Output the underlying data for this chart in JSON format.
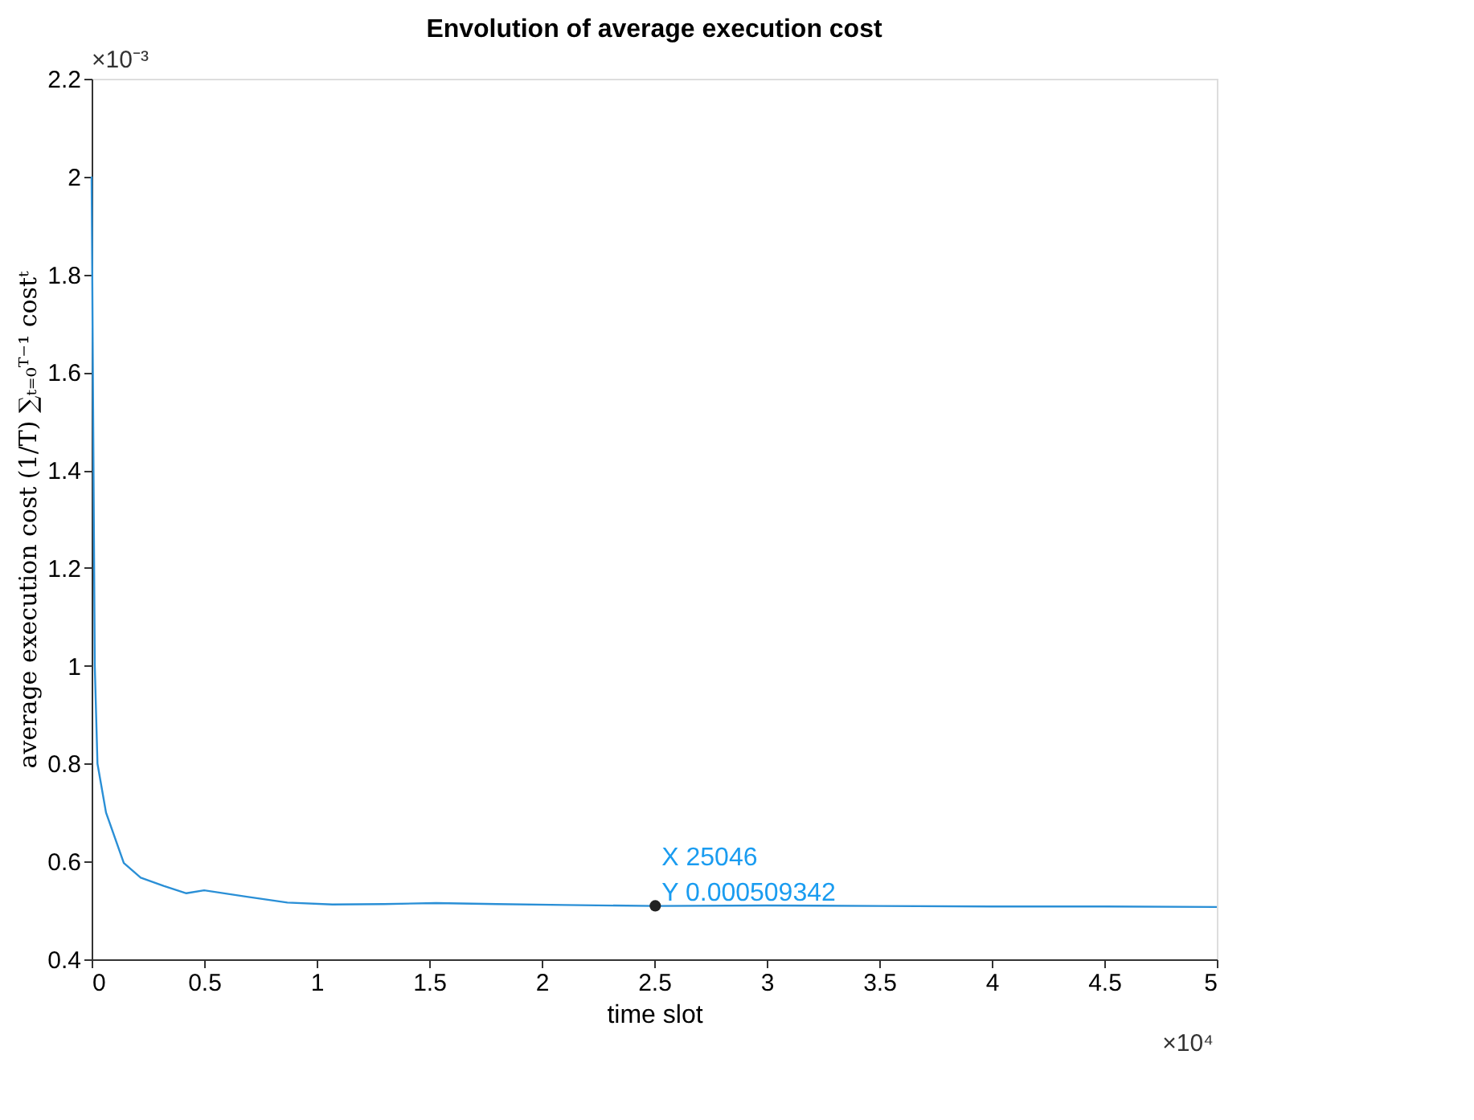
{
  "chart_data": {
    "type": "line",
    "title": "Envolution of average execution cost",
    "xlabel": "time slot",
    "ylabel": "average execution cost (1/T) ∑ₜ₌₀ᵀ⁻¹ costᵗ",
    "x": [
      0,
      0.014,
      0.026,
      0.064,
      0.143,
      0.218,
      0.32,
      0.421,
      0.5,
      0.69,
      0.87,
      1.07,
      1.3,
      1.53,
      1.8,
      2.1,
      2.5046,
      3.0,
      3.5,
      4.0,
      4.5,
      5.0
    ],
    "series": [
      {
        "color": "#2a8fd6",
        "values": [
          2.0,
          1.0,
          0.8,
          0.7,
          0.597,
          0.567,
          0.55,
          0.535,
          0.541,
          0.528,
          0.516,
          0.512,
          0.513,
          0.515,
          0.513,
          0.511,
          0.509,
          0.51,
          0.509,
          0.508,
          0.508,
          0.507
        ]
      }
    ],
    "xlim": [
      0,
      5
    ],
    "ylim": [
      0.4,
      2.2
    ],
    "xticks": [
      0,
      0.5,
      1,
      1.5,
      2,
      2.5,
      3,
      3.5,
      4,
      4.5,
      5
    ],
    "yticks": [
      0.4,
      0.6,
      0.8,
      1,
      1.2,
      1.4,
      1.6,
      1.8,
      2,
      2.2
    ],
    "annotations": [
      "×10⁻³",
      "×10⁴",
      {
        "text": "X 25046\nY 0.000509342",
        "x": 2.5046,
        "y": 0.509342
      }
    ],
    "grid": false,
    "marker": "none",
    "line_style": "solid"
  }
}
